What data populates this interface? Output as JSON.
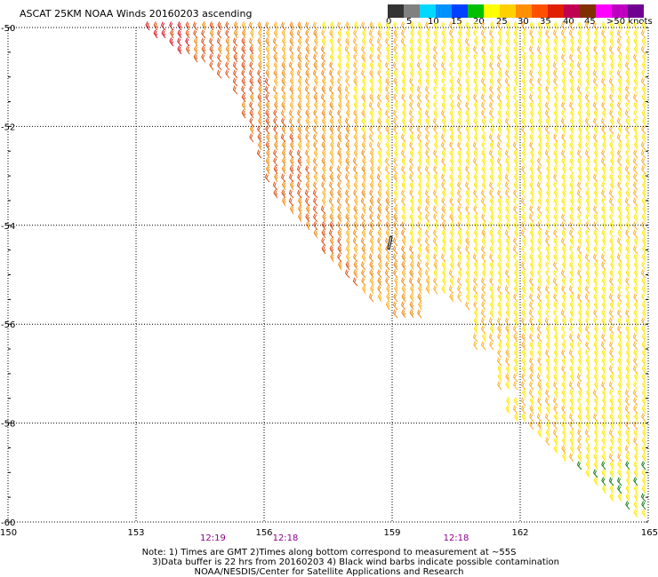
{
  "title": "ASCAT 25KM NOAA Winds 20160203 ascending",
  "colorbar": {
    "colors": [
      "#333333",
      "#808080",
      "#00d8ff",
      "#0090ff",
      "#0040ff",
      "#00c000",
      "#ffff00",
      "#ffd000",
      "#ff9000",
      "#ff5000",
      "#e02000",
      "#c00050",
      "#803000",
      "#ff00ff",
      "#c000c0",
      "#700090"
    ],
    "labels": [
      "0",
      "5",
      "10",
      "15",
      "20",
      "25",
      "30",
      "35",
      "40",
      "45",
      ">50 knots"
    ]
  },
  "map": {
    "lon_ticks": [
      "150",
      "153",
      "156",
      "159",
      "162",
      "165"
    ],
    "lat_ticks": [
      "-50",
      "-52",
      "-54",
      "-56",
      "-58",
      "-60"
    ],
    "times": [
      {
        "lon": 154.8,
        "text": "12:19"
      },
      {
        "lon": 156.5,
        "text": "12:18"
      },
      {
        "lon": 160.5,
        "text": "12:18"
      }
    ],
    "time_color": "#8b008b",
    "barb_colors": {
      "red": "#d81820",
      "crimson": "#c0205a",
      "orange_red": "#e05010",
      "orange": "#f08c10",
      "light_orange": "#ffb020",
      "yellow": "#ffe800",
      "green": "#20a020",
      "dark_green": "#108010",
      "contamination": "#000000"
    }
  },
  "notes": {
    "line1": "Note: 1) Times are GMT 2)Times along bottom correspond to measurement at ~55S",
    "line2": "3)Data buffer is 22 hrs from 20160203 4) Black wind barbs indicate possible contamination",
    "line3": "NOAA/NESDIS/Center for Satellite Applications and Research"
  }
}
